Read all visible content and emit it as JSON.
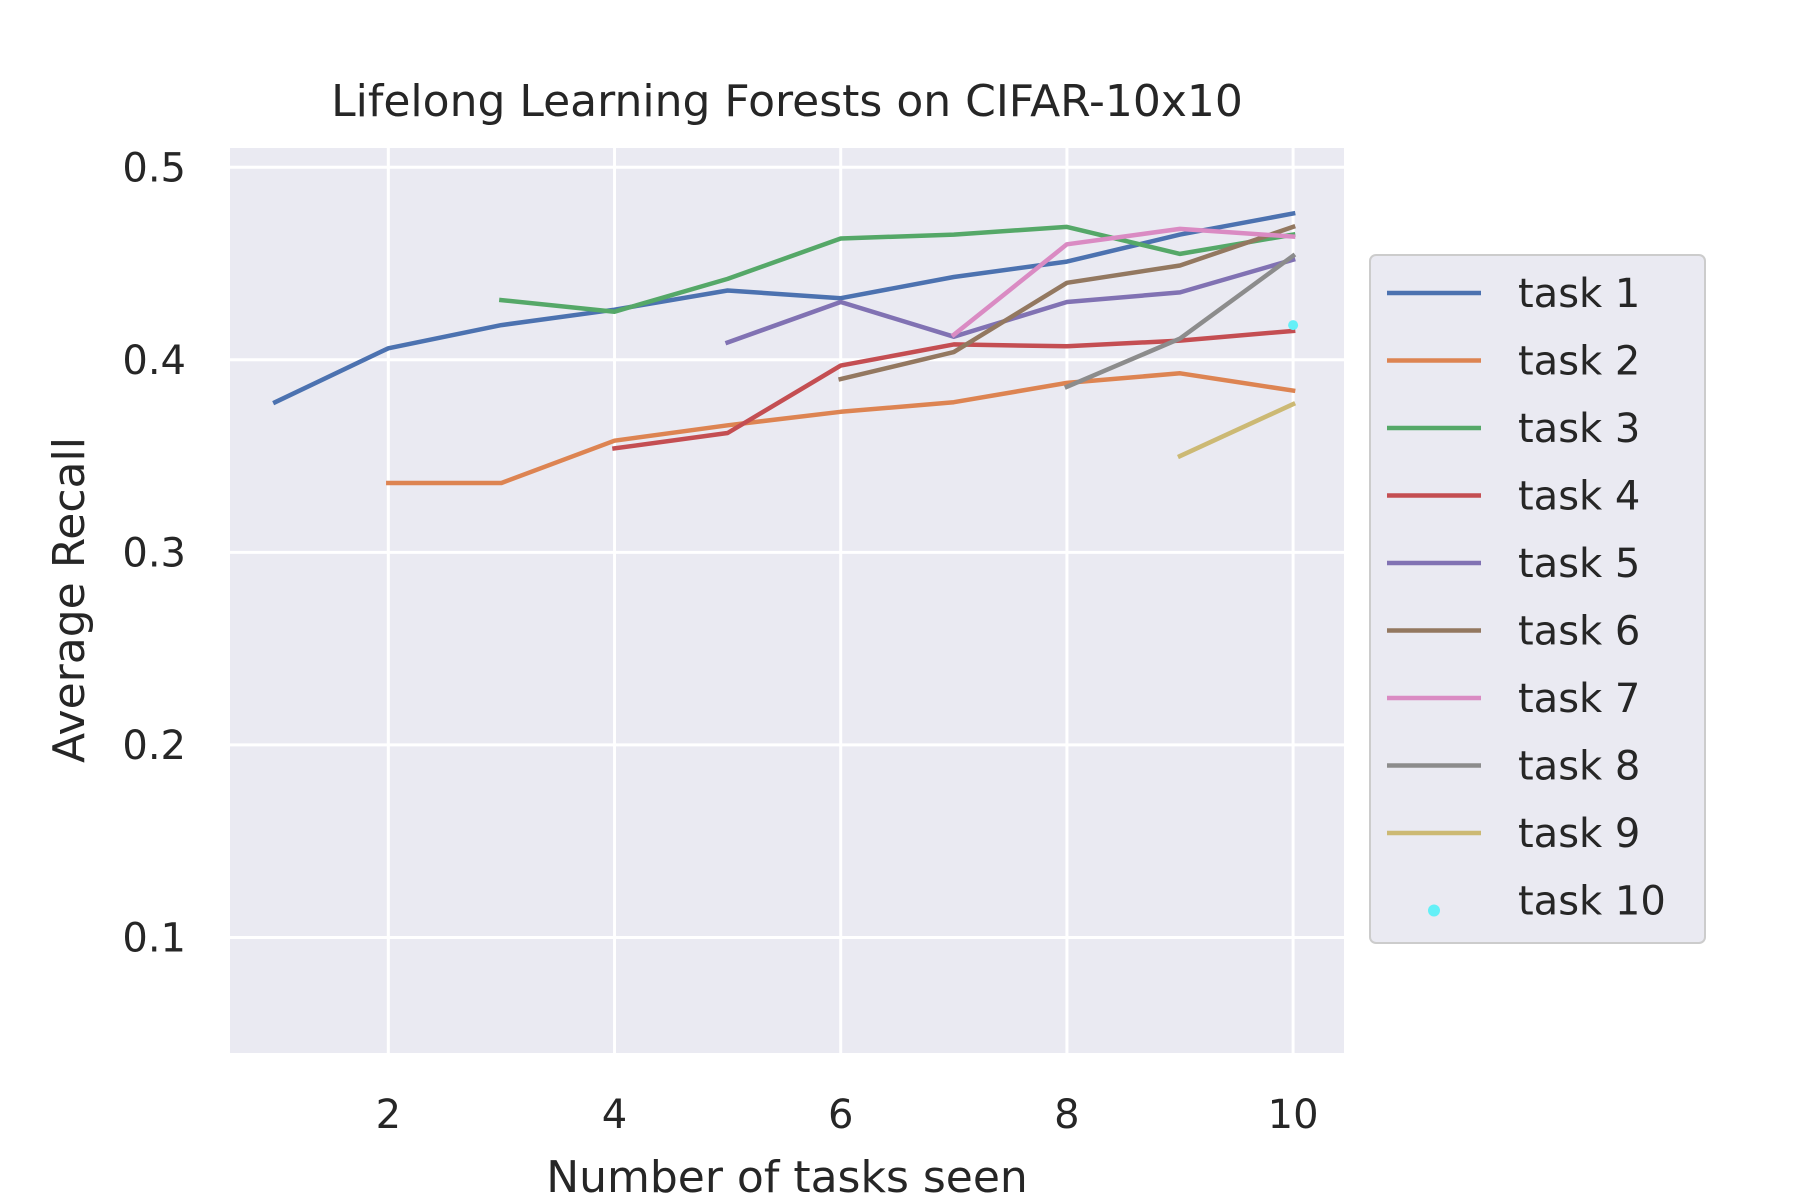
{
  "chart_data": {
    "type": "line",
    "title": "Lifelong Learning Forests on CIFAR-10x10",
    "xlabel": "Number of tasks seen",
    "ylabel": "Average Recall",
    "xlim": [
      0.6,
      10.45
    ],
    "ylim": [
      0.04,
      0.51
    ],
    "xticks": [
      2,
      4,
      6,
      8,
      10
    ],
    "yticks": [
      0.1,
      0.2,
      0.3,
      0.4,
      0.5
    ],
    "xtick_labels": [
      "2",
      "4",
      "6",
      "8",
      "10"
    ],
    "ytick_labels": [
      "0.1",
      "0.2",
      "0.3",
      "0.4",
      "0.5"
    ],
    "grid": true,
    "legend_position": "right-outside",
    "colors": {
      "plot_bg": "#eaeaf2",
      "grid": "#ffffff",
      "legend_bg": "#eaeaf2",
      "legend_border": "#cccccc"
    },
    "series": [
      {
        "name": "task 1",
        "color": "#4c72b0",
        "x": [
          1,
          2,
          3,
          4,
          5,
          6,
          7,
          8,
          9,
          10
        ],
        "values": [
          0.378,
          0.406,
          0.418,
          0.426,
          0.436,
          0.432,
          0.443,
          0.451,
          0.465,
          0.476
        ]
      },
      {
        "name": "task 2",
        "color": "#dd8452",
        "x": [
          2,
          3,
          4,
          5,
          6,
          7,
          8,
          9,
          10
        ],
        "values": [
          0.336,
          0.336,
          0.358,
          0.366,
          0.373,
          0.378,
          0.388,
          0.393,
          0.384
        ]
      },
      {
        "name": "task 3",
        "color": "#55a868",
        "x": [
          3,
          4,
          5,
          6,
          7,
          8,
          9,
          10
        ],
        "values": [
          0.431,
          0.425,
          0.442,
          0.463,
          0.465,
          0.469,
          0.455,
          0.465
        ]
      },
      {
        "name": "task 4",
        "color": "#c44e52",
        "x": [
          4,
          5,
          6,
          7,
          8,
          9,
          10
        ],
        "values": [
          0.354,
          0.362,
          0.397,
          0.408,
          0.407,
          0.41,
          0.415
        ]
      },
      {
        "name": "task 5",
        "color": "#8172b3",
        "x": [
          5,
          6,
          7,
          8,
          9,
          10
        ],
        "values": [
          0.409,
          0.43,
          0.412,
          0.43,
          0.435,
          0.452
        ]
      },
      {
        "name": "task 6",
        "color": "#937860",
        "x": [
          6,
          7,
          8,
          9,
          10
        ],
        "values": [
          0.39,
          0.404,
          0.44,
          0.449,
          0.469
        ]
      },
      {
        "name": "task 7",
        "color": "#da8bc3",
        "x": [
          7,
          8,
          9,
          10
        ],
        "values": [
          0.413,
          0.46,
          0.468,
          0.464
        ]
      },
      {
        "name": "task 8",
        "color": "#8c8c8c",
        "x": [
          8,
          9,
          10
        ],
        "values": [
          0.386,
          0.411,
          0.454
        ]
      },
      {
        "name": "task 9",
        "color": "#ccb974",
        "x": [
          9,
          10
        ],
        "values": [
          0.35,
          0.377
        ]
      },
      {
        "name": "task 10",
        "color": "#64f0f7",
        "marker": "dot",
        "x": [
          10
        ],
        "values": [
          0.418
        ]
      }
    ]
  }
}
